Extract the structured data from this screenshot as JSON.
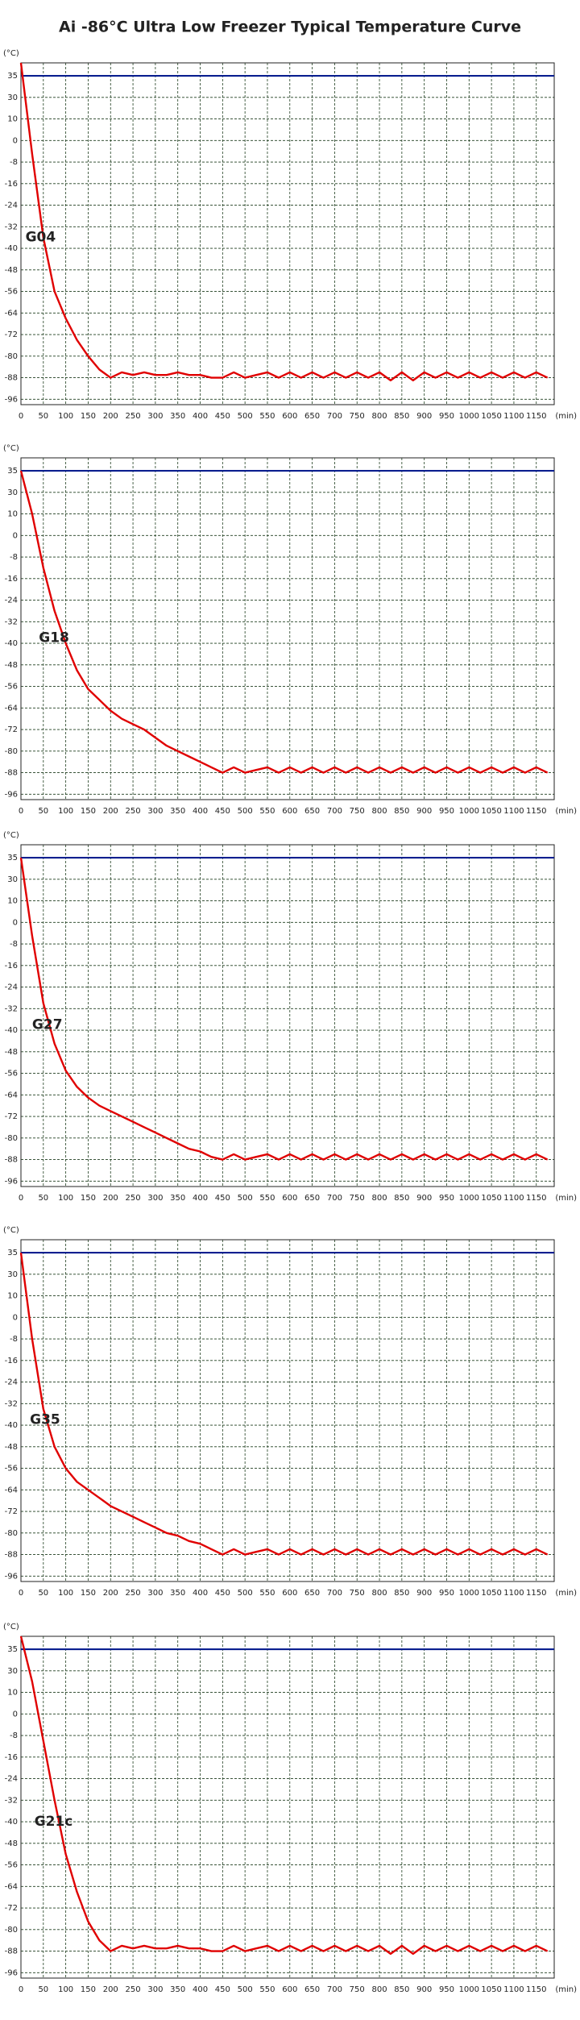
{
  "title": "Ai -86°C Ultra Low Freezer Typical Temperature Curve",
  "chart_data": [
    {
      "type": "line",
      "annotation": "G04",
      "y_unit": "(°C)",
      "x_unit": "(min)",
      "color": "#e00000",
      "x": [
        0,
        25,
        50,
        75,
        100,
        125,
        150,
        175,
        200,
        225,
        250,
        275,
        300,
        325,
        350,
        375,
        400,
        425,
        450,
        475,
        500,
        525,
        550,
        575,
        600,
        625,
        650,
        675,
        700,
        725,
        750,
        775,
        800,
        825,
        850,
        875,
        900,
        925,
        950,
        975,
        1000,
        1025,
        1050,
        1075,
        1100,
        1125,
        1150,
        1175
      ],
      "values": [
        38,
        -5,
        -36,
        -56,
        -66,
        -74,
        -80,
        -85,
        -88,
        -86,
        -87,
        -86,
        -87,
        -87,
        -86,
        -87,
        -87,
        -88,
        -88,
        -86,
        -88,
        -87,
        -86,
        -88,
        -86,
        -88,
        -86,
        -88,
        -86,
        -88,
        -86,
        -88,
        -86,
        -89,
        -86,
        -89,
        -86,
        -88,
        -86,
        -88,
        -86,
        -88,
        -86,
        -88,
        -86,
        -88,
        -86,
        -88
      ],
      "xlim": [
        0,
        1190
      ],
      "ylim": [
        -98,
        38
      ],
      "xticks": [
        0,
        50,
        100,
        150,
        200,
        250,
        300,
        350,
        400,
        450,
        500,
        550,
        600,
        650,
        700,
        750,
        800,
        850,
        900,
        950,
        1000,
        1050,
        1100,
        1150
      ],
      "yticks": [
        35,
        30,
        10,
        0,
        -8,
        -16,
        -24,
        -32,
        -40,
        -48,
        -56,
        -64,
        -72,
        -80,
        -88,
        -96
      ],
      "grid": true,
      "reference_line": {
        "value": 35,
        "color": "#0a1f8f"
      }
    },
    {
      "type": "line",
      "annotation": "G18",
      "y_unit": "(°C)",
      "x_unit": "(min)",
      "color": "#e00000",
      "x": [
        0,
        25,
        50,
        75,
        100,
        125,
        150,
        175,
        200,
        225,
        250,
        275,
        300,
        325,
        350,
        375,
        400,
        425,
        450,
        475,
        500,
        525,
        550,
        575,
        600,
        625,
        650,
        675,
        700,
        725,
        750,
        775,
        800,
        825,
        850,
        875,
        900,
        925,
        950,
        975,
        1000,
        1025,
        1050,
        1075,
        1100,
        1125,
        1150,
        1175
      ],
      "values": [
        35,
        10,
        -12,
        -28,
        -40,
        -50,
        -57,
        -61,
        -65,
        -68,
        -70,
        -72,
        -75,
        -78,
        -80,
        -82,
        -84,
        -86,
        -88,
        -86,
        -88,
        -87,
        -86,
        -88,
        -86,
        -88,
        -86,
        -88,
        -86,
        -88,
        -86,
        -88,
        -86,
        -88,
        -86,
        -88,
        -86,
        -88,
        -86,
        -88,
        -86,
        -88,
        -86,
        -88,
        -86,
        -88,
        -86,
        -88
      ],
      "xlim": [
        0,
        1190
      ],
      "ylim": [
        -98,
        38
      ],
      "xticks": [
        0,
        50,
        100,
        150,
        200,
        250,
        300,
        350,
        400,
        450,
        500,
        550,
        600,
        650,
        700,
        750,
        800,
        850,
        900,
        950,
        1000,
        1050,
        1100,
        1150
      ],
      "yticks": [
        35,
        30,
        10,
        0,
        -8,
        -16,
        -24,
        -32,
        -40,
        -48,
        -56,
        -64,
        -72,
        -80,
        -88,
        -96
      ],
      "grid": true,
      "reference_line": {
        "value": 35,
        "color": "#0a1f8f"
      }
    },
    {
      "type": "line",
      "annotation": "G27",
      "y_unit": "(°C)",
      "x_unit": "(min)",
      "color": "#e00000",
      "x": [
        0,
        25,
        50,
        75,
        100,
        125,
        150,
        175,
        200,
        225,
        250,
        275,
        300,
        325,
        350,
        375,
        400,
        425,
        450,
        475,
        500,
        525,
        550,
        575,
        600,
        625,
        650,
        675,
        700,
        725,
        750,
        775,
        800,
        825,
        850,
        875,
        900,
        925,
        950,
        975,
        1000,
        1025,
        1050,
        1075,
        1100,
        1125,
        1150,
        1175
      ],
      "values": [
        35,
        -5,
        -30,
        -45,
        -55,
        -61,
        -65,
        -68,
        -70,
        -72,
        -74,
        -76,
        -78,
        -80,
        -82,
        -84,
        -85,
        -87,
        -88,
        -86,
        -88,
        -87,
        -86,
        -88,
        -86,
        -88,
        -86,
        -88,
        -86,
        -88,
        -86,
        -88,
        -86,
        -88,
        -86,
        -88,
        -86,
        -88,
        -86,
        -88,
        -86,
        -88,
        -86,
        -88,
        -86,
        -88,
        -86,
        -88
      ],
      "xlim": [
        0,
        1190
      ],
      "ylim": [
        -98,
        38
      ],
      "xticks": [
        0,
        50,
        100,
        150,
        200,
        250,
        300,
        350,
        400,
        450,
        500,
        550,
        600,
        650,
        700,
        750,
        800,
        850,
        900,
        950,
        1000,
        1050,
        1100,
        1150
      ],
      "yticks": [
        35,
        30,
        10,
        0,
        -8,
        -16,
        -24,
        -32,
        -40,
        -48,
        -56,
        -64,
        -72,
        -80,
        -88,
        -96
      ],
      "grid": true,
      "reference_line": {
        "value": 35,
        "color": "#0a1f8f"
      }
    },
    {
      "type": "line",
      "annotation": "G35",
      "y_unit": "(°C)",
      "x_unit": "(min)",
      "color": "#e00000",
      "x": [
        0,
        25,
        50,
        75,
        100,
        125,
        150,
        175,
        200,
        225,
        250,
        275,
        300,
        325,
        350,
        375,
        400,
        425,
        450,
        475,
        500,
        525,
        550,
        575,
        600,
        625,
        650,
        675,
        700,
        725,
        750,
        775,
        800,
        825,
        850,
        875,
        900,
        925,
        950,
        975,
        1000,
        1025,
        1050,
        1075,
        1100,
        1125,
        1150,
        1175
      ],
      "values": [
        35,
        -8,
        -34,
        -48,
        -56,
        -61,
        -64,
        -67,
        -70,
        -72,
        -74,
        -76,
        -78,
        -80,
        -81,
        -83,
        -84,
        -86,
        -88,
        -86,
        -88,
        -87,
        -86,
        -88,
        -86,
        -88,
        -86,
        -88,
        -86,
        -88,
        -86,
        -88,
        -86,
        -88,
        -86,
        -88,
        -86,
        -88,
        -86,
        -88,
        -86,
        -88,
        -86,
        -88,
        -86,
        -88,
        -86,
        -88
      ],
      "xlim": [
        0,
        1190
      ],
      "ylim": [
        -98,
        38
      ],
      "xticks": [
        0,
        50,
        100,
        150,
        200,
        250,
        300,
        350,
        400,
        450,
        500,
        550,
        600,
        650,
        700,
        750,
        800,
        850,
        900,
        950,
        1000,
        1050,
        1100,
        1150
      ],
      "yticks": [
        35,
        30,
        10,
        0,
        -8,
        -16,
        -24,
        -32,
        -40,
        -48,
        -56,
        -64,
        -72,
        -80,
        -88,
        -96
      ],
      "grid": true,
      "reference_line": {
        "value": 35,
        "color": "#0a1f8f"
      }
    },
    {
      "type": "line",
      "annotation": "G21c",
      "y_unit": "(°C)",
      "x_unit": "(min)",
      "color": "#e00000",
      "x": [
        0,
        25,
        50,
        75,
        100,
        125,
        150,
        175,
        200,
        225,
        250,
        275,
        300,
        325,
        350,
        375,
        400,
        425,
        450,
        475,
        500,
        525,
        550,
        575,
        600,
        625,
        650,
        675,
        700,
        725,
        750,
        775,
        800,
        825,
        850,
        875,
        900,
        925,
        950,
        975,
        1000,
        1025,
        1050,
        1075,
        1100,
        1125,
        1150,
        1175
      ],
      "values": [
        38,
        20,
        -10,
        -32,
        -52,
        -66,
        -77,
        -84,
        -88,
        -86,
        -87,
        -86,
        -87,
        -87,
        -86,
        -87,
        -87,
        -88,
        -88,
        -86,
        -88,
        -87,
        -86,
        -88,
        -86,
        -88,
        -86,
        -88,
        -86,
        -88,
        -86,
        -88,
        -86,
        -89,
        -86,
        -89,
        -86,
        -88,
        -86,
        -88,
        -86,
        -88,
        -86,
        -88,
        -86,
        -88,
        -86,
        -88
      ],
      "xlim": [
        0,
        1190
      ],
      "ylim": [
        -98,
        38
      ],
      "xticks": [
        0,
        50,
        100,
        150,
        200,
        250,
        300,
        350,
        400,
        450,
        500,
        550,
        600,
        650,
        700,
        750,
        800,
        850,
        900,
        950,
        1000,
        1050,
        1100,
        1150
      ],
      "yticks": [
        35,
        30,
        10,
        0,
        -8,
        -16,
        -24,
        -32,
        -40,
        -48,
        -56,
        -64,
        -72,
        -80,
        -88,
        -96
      ],
      "grid": true,
      "reference_line": {
        "value": 35,
        "color": "#0a1f8f"
      }
    }
  ]
}
